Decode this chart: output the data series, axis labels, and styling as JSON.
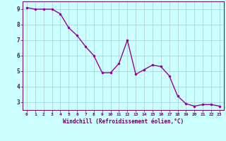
{
  "x": [
    0,
    1,
    2,
    3,
    4,
    5,
    6,
    7,
    8,
    9,
    10,
    11,
    12,
    13,
    14,
    15,
    16,
    17,
    18,
    19,
    20,
    21,
    22,
    23
  ],
  "y": [
    9.1,
    9.0,
    9.0,
    9.0,
    8.7,
    7.8,
    7.3,
    6.6,
    6.0,
    4.9,
    4.9,
    5.5,
    7.0,
    4.8,
    5.1,
    5.4,
    5.3,
    4.7,
    3.4,
    2.9,
    2.75,
    2.85,
    2.85,
    2.75
  ],
  "line_color": "#990099",
  "marker": ".",
  "marker_size": 3,
  "bg_color": "#ccffff",
  "grid_color": "#aacccc",
  "xlabel": "Windchill (Refroidissement éolien,°C)",
  "xlabel_color": "#660066",
  "tick_color": "#660066",
  "xlim": [
    -0.5,
    23.5
  ],
  "ylim": [
    2.5,
    9.5
  ],
  "yticks": [
    3,
    4,
    5,
    6,
    7,
    8,
    9
  ],
  "xticks": [
    0,
    1,
    2,
    3,
    4,
    5,
    6,
    7,
    8,
    9,
    10,
    11,
    12,
    13,
    14,
    15,
    16,
    17,
    18,
    19,
    20,
    21,
    22,
    23
  ],
  "spine_color": "#660066",
  "line_width": 1.0
}
